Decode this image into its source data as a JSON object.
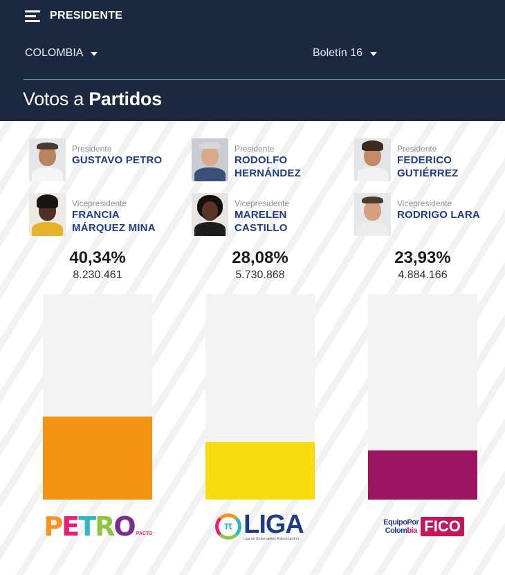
{
  "header": {
    "menu_title": "PRESIDENTE",
    "country_label": "COLOMBIA",
    "bulletin_label": "Boletín 16",
    "section_title_prefix": "Votos a",
    "section_title_bold": "Partidos"
  },
  "candidates": [
    {
      "president_role": "Presidente",
      "president_name_line1": "GUSTAVO PETRO",
      "president_name_line2": "",
      "vice_role": "Vicepresidente",
      "vice_name_line1": "FRANCIA",
      "vice_name_line2": "MÁRQUEZ MINA",
      "percent": "40,34%",
      "percent_value": 40.34,
      "votes": "8.230.461",
      "bar_color": "#f39314",
      "logo": {
        "text": "PETRO",
        "sub": "PACTO"
      }
    },
    {
      "president_role": "Presidente",
      "president_name_line1": "RODOLFO",
      "president_name_line2": "HERNÁNDEZ",
      "vice_role": "Vicepresidente",
      "vice_name_line1": "MARELEN",
      "vice_name_line2": "CASTILLO",
      "percent": "28,08%",
      "percent_value": 28.08,
      "votes": "5.730.868",
      "bar_color": "#f7dc0f",
      "logo": {
        "text": "LIGA",
        "symbol": "π",
        "sub": "Liga de Gobernantes Anticorrupción"
      }
    },
    {
      "president_role": "Presidente",
      "president_name_line1": "FEDERICO",
      "president_name_line2": "GUTIÉRREZ",
      "vice_role": "Vicepresidente",
      "vice_name_line1": "RODRIGO LARA",
      "vice_name_line2": "",
      "percent": "23,93%",
      "percent_value": 23.93,
      "votes": "4.884.166",
      "bar_color": "#9a1460",
      "logo": {
        "line1": "EquipoPor",
        "line2": "Colombia",
        "text": "FICO"
      }
    }
  ],
  "chart_max_percent": 100,
  "colors": {
    "header_bg": "#1c2840",
    "divider": "#5fc7d0",
    "name_text": "#1f3c88",
    "bar_track": "#f3f3f3"
  }
}
